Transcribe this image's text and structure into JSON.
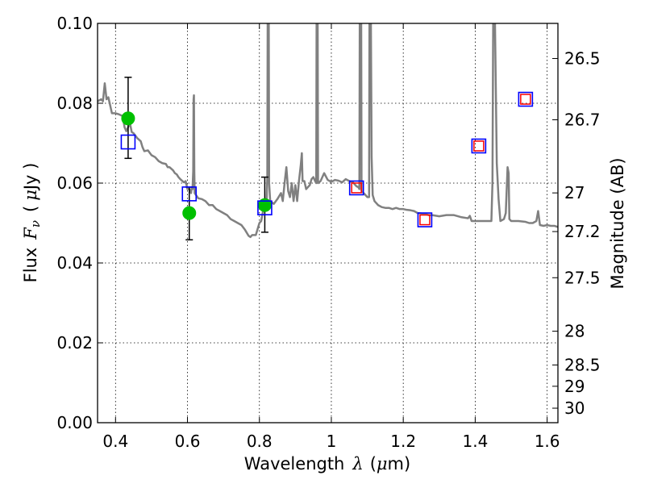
{
  "chart_data": {
    "type": "scatter",
    "xlabel_prefix": "Wavelength",
    "xlabel_symbol": "λ",
    "xlabel_unit_open": "(",
    "xlabel_unit_mu": "μ",
    "xlabel_unit_rest": "m)",
    "ylabel_prefix": "Flux",
    "ylabel_symbol": "F",
    "ylabel_subscript": "ν",
    "ylabel_unit_open": "(",
    "ylabel_unit_mu": "μ",
    "ylabel_unit_rest": "Jy )",
    "y2label": "Magnitude (AB)",
    "xlim": [
      0.35,
      1.63
    ],
    "ylim": [
      0.0,
      0.1
    ],
    "xticks": [
      0.4,
      0.6,
      0.8,
      1.0,
      1.2,
      1.4,
      1.6
    ],
    "xtick_labels": [
      "0.4",
      "0.6",
      "0.8",
      "1",
      "1.2",
      "1.4",
      "1.6"
    ],
    "yticks": [
      0.0,
      0.02,
      0.04,
      0.06,
      0.08,
      0.1
    ],
    "ytick_labels": [
      "0.00",
      "0.02",
      "0.04",
      "0.06",
      "0.08",
      "0.10"
    ],
    "y2ticks": [
      {
        "label": "26.5",
        "value": 26.5
      },
      {
        "label": "26.7",
        "value": 26.7
      },
      {
        "label": "27",
        "value": 27.0
      },
      {
        "label": "27.2",
        "value": 27.2
      },
      {
        "label": "27.5",
        "value": 27.5
      },
      {
        "label": "28",
        "value": 28.0
      },
      {
        "label": "28.5",
        "value": 28.5
      },
      {
        "label": "29",
        "value": 29.0
      },
      {
        "label": "30",
        "value": 30.0
      }
    ],
    "grid": true,
    "series": [
      {
        "name": "model-spectrum",
        "kind": "line",
        "color": "#808080",
        "points": [
          [
            0.35,
            0.0805
          ],
          [
            0.36,
            0.081
          ],
          [
            0.365,
            0.0805
          ],
          [
            0.37,
            0.085
          ],
          [
            0.375,
            0.081
          ],
          [
            0.38,
            0.0815
          ],
          [
            0.39,
            0.0775
          ],
          [
            0.4,
            0.0775
          ],
          [
            0.41,
            0.0772
          ],
          [
            0.42,
            0.0768
          ],
          [
            0.425,
            0.074
          ],
          [
            0.43,
            0.073
          ],
          [
            0.44,
            0.075
          ],
          [
            0.445,
            0.0728
          ],
          [
            0.45,
            0.0725
          ],
          [
            0.46,
            0.0713
          ],
          [
            0.47,
            0.0705
          ],
          [
            0.475,
            0.069
          ],
          [
            0.48,
            0.068
          ],
          [
            0.49,
            0.0682
          ],
          [
            0.5,
            0.067
          ],
          [
            0.51,
            0.0665
          ],
          [
            0.52,
            0.0655
          ],
          [
            0.53,
            0.065
          ],
          [
            0.54,
            0.0648
          ],
          [
            0.545,
            0.064
          ],
          [
            0.55,
            0.064
          ],
          [
            0.56,
            0.0632
          ],
          [
            0.565,
            0.0625
          ],
          [
            0.57,
            0.0622
          ],
          [
            0.575,
            0.0615
          ],
          [
            0.58,
            0.061
          ],
          [
            0.59,
            0.0602
          ],
          [
            0.595,
            0.0605
          ],
          [
            0.6,
            0.0585
          ],
          [
            0.605,
            0.0585
          ],
          [
            0.61,
            0.0575
          ],
          [
            0.612,
            0.059
          ],
          [
            0.614,
            0.0585
          ],
          [
            0.616,
            0.063
          ],
          [
            0.617,
            0.081
          ],
          [
            0.618,
            0.082
          ],
          [
            0.619,
            0.063
          ],
          [
            0.62,
            0.0575
          ],
          [
            0.63,
            0.0562
          ],
          [
            0.64,
            0.056
          ],
          [
            0.65,
            0.0555
          ],
          [
            0.66,
            0.0545
          ],
          [
            0.67,
            0.0545
          ],
          [
            0.68,
            0.0535
          ],
          [
            0.69,
            0.053
          ],
          [
            0.7,
            0.0525
          ],
          [
            0.71,
            0.052
          ],
          [
            0.72,
            0.051
          ],
          [
            0.73,
            0.0505
          ],
          [
            0.74,
            0.05
          ],
          [
            0.75,
            0.0495
          ],
          [
            0.76,
            0.0483
          ],
          [
            0.77,
            0.0468
          ],
          [
            0.775,
            0.0465
          ],
          [
            0.78,
            0.047
          ],
          [
            0.79,
            0.047
          ],
          [
            0.8,
            0.05
          ],
          [
            0.805,
            0.0505
          ],
          [
            0.81,
            0.053
          ],
          [
            0.815,
            0.055
          ],
          [
            0.818,
            0.056
          ],
          [
            0.82,
            0.055
          ],
          [
            0.822,
            0.062
          ],
          [
            0.823,
            0.1
          ],
          [
            0.826,
            0.1
          ],
          [
            0.827,
            0.06
          ],
          [
            0.83,
            0.0555
          ],
          [
            0.84,
            0.0548
          ],
          [
            0.85,
            0.056
          ],
          [
            0.86,
            0.0575
          ],
          [
            0.865,
            0.0555
          ],
          [
            0.87,
            0.06
          ],
          [
            0.875,
            0.064
          ],
          [
            0.88,
            0.058
          ],
          [
            0.885,
            0.0565
          ],
          [
            0.89,
            0.06
          ],
          [
            0.895,
            0.0555
          ],
          [
            0.9,
            0.0595
          ],
          [
            0.905,
            0.0555
          ],
          [
            0.91,
            0.0605
          ],
          [
            0.915,
            0.0645
          ],
          [
            0.918,
            0.0675
          ],
          [
            0.92,
            0.0605
          ],
          [
            0.925,
            0.0605
          ],
          [
            0.93,
            0.0585
          ],
          [
            0.935,
            0.059
          ],
          [
            0.94,
            0.0595
          ],
          [
            0.945,
            0.061
          ],
          [
            0.95,
            0.0615
          ],
          [
            0.955,
            0.0605
          ],
          [
            0.958,
            0.06
          ],
          [
            0.959,
            0.1
          ],
          [
            0.962,
            0.1
          ],
          [
            0.963,
            0.06
          ],
          [
            0.97,
            0.0605
          ],
          [
            0.98,
            0.0625
          ],
          [
            0.99,
            0.0608
          ],
          [
            1.0,
            0.0603
          ],
          [
            1.01,
            0.0608
          ],
          [
            1.02,
            0.0606
          ],
          [
            1.03,
            0.0602
          ],
          [
            1.04,
            0.061
          ],
          [
            1.05,
            0.0605
          ],
          [
            1.06,
            0.0602
          ],
          [
            1.07,
            0.0592
          ],
          [
            1.075,
            0.059
          ],
          [
            1.078,
            0.0585
          ],
          [
            1.079,
            0.1
          ],
          [
            1.083,
            0.1
          ],
          [
            1.084,
            0.058
          ],
          [
            1.09,
            0.0575
          ],
          [
            1.1,
            0.0565
          ],
          [
            1.105,
            0.0565
          ],
          [
            1.106,
            0.1
          ],
          [
            1.11,
            0.1
          ],
          [
            1.112,
            0.0665
          ],
          [
            1.115,
            0.057
          ],
          [
            1.12,
            0.0555
          ],
          [
            1.13,
            0.0545
          ],
          [
            1.14,
            0.054
          ],
          [
            1.15,
            0.0538
          ],
          [
            1.16,
            0.0538
          ],
          [
            1.17,
            0.0535
          ],
          [
            1.18,
            0.0538
          ],
          [
            1.19,
            0.0535
          ],
          [
            1.2,
            0.0535
          ],
          [
            1.21,
            0.0533
          ],
          [
            1.22,
            0.0532
          ],
          [
            1.23,
            0.053
          ],
          [
            1.24,
            0.0525
          ],
          [
            1.25,
            0.0524
          ],
          [
            1.26,
            0.0523
          ],
          [
            1.27,
            0.052
          ],
          [
            1.28,
            0.052
          ],
          [
            1.3,
            0.0517
          ],
          [
            1.32,
            0.052
          ],
          [
            1.34,
            0.052
          ],
          [
            1.36,
            0.0515
          ],
          [
            1.38,
            0.0512
          ],
          [
            1.385,
            0.0518
          ],
          [
            1.39,
            0.0505
          ],
          [
            1.4,
            0.0505
          ],
          [
            1.42,
            0.0505
          ],
          [
            1.44,
            0.0505
          ],
          [
            1.445,
            0.0505
          ],
          [
            1.448,
            0.06
          ],
          [
            1.45,
            0.1
          ],
          [
            1.455,
            0.1
          ],
          [
            1.46,
            0.065
          ],
          [
            1.465,
            0.056
          ],
          [
            1.47,
            0.0505
          ],
          [
            1.48,
            0.051
          ],
          [
            1.485,
            0.0525
          ],
          [
            1.49,
            0.064
          ],
          [
            1.493,
            0.0625
          ],
          [
            1.495,
            0.051
          ],
          [
            1.5,
            0.0505
          ],
          [
            1.52,
            0.0505
          ],
          [
            1.54,
            0.0503
          ],
          [
            1.55,
            0.05
          ],
          [
            1.56,
            0.05
          ],
          [
            1.57,
            0.0505
          ],
          [
            1.575,
            0.053
          ],
          [
            1.58,
            0.0495
          ],
          [
            1.59,
            0.0493
          ],
          [
            1.6,
            0.0495
          ],
          [
            1.61,
            0.0493
          ],
          [
            1.62,
            0.0493
          ],
          [
            1.63,
            0.049
          ]
        ]
      },
      {
        "name": "observed-flux",
        "kind": "points-with-errorbars",
        "color": "#00c000",
        "points": [
          {
            "x": 0.435,
            "y": 0.0762,
            "yerr_low": 0.0662,
            "yerr_high": 0.0865
          },
          {
            "x": 0.605,
            "y": 0.0525,
            "yerr_low": 0.0458,
            "yerr_high": 0.059
          },
          {
            "x": 0.815,
            "y": 0.0545,
            "yerr_low": 0.0477,
            "yerr_high": 0.0615
          }
        ]
      },
      {
        "name": "model-blue-squares",
        "kind": "open-squares",
        "color": "#0000ff",
        "points": [
          {
            "x": 0.435,
            "y": 0.0703
          },
          {
            "x": 0.605,
            "y": 0.0573
          },
          {
            "x": 0.815,
            "y": 0.0538
          },
          {
            "x": 1.07,
            "y": 0.0588
          },
          {
            "x": 1.26,
            "y": 0.0508
          },
          {
            "x": 1.41,
            "y": 0.0693
          },
          {
            "x": 1.54,
            "y": 0.081
          }
        ]
      },
      {
        "name": "model-red-squares",
        "kind": "open-squares",
        "color": "#ff0000",
        "points": [
          {
            "x": 1.07,
            "y": 0.0588
          },
          {
            "x": 1.26,
            "y": 0.0508
          },
          {
            "x": 1.41,
            "y": 0.0693
          },
          {
            "x": 1.54,
            "y": 0.081
          }
        ]
      }
    ]
  }
}
